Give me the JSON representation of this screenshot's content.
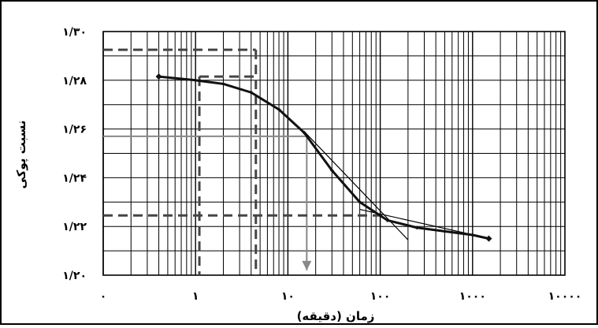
{
  "chart_data": {
    "type": "line",
    "title": "",
    "xlabel": "زمان (دقیقه)",
    "ylabel": "نسبت پوکی",
    "xscale": "log",
    "xlim": [
      0.1,
      10000
    ],
    "ylim": [
      1.2,
      1.3
    ],
    "x_tick_labels": [
      "۰",
      "۱",
      "۱۰",
      "۱۰۰",
      "۱۰۰۰",
      "۱۰۰۰۰"
    ],
    "y_tick_labels": [
      "۱/۲۰",
      "۱/۲۲",
      "۱/۲۴",
      "۱/۲۶",
      "۱/۲۸",
      "۱/۳۰"
    ],
    "grid": true,
    "colors": {
      "curve": "#111111",
      "dashed": "#444444",
      "reference": "#888888",
      "grid": "#000000"
    },
    "series": [
      {
        "x": [
          0.4,
          1.0,
          2.0,
          4.0,
          8.0,
          15.0,
          30.0,
          60.0,
          120.0,
          250.0,
          500.0,
          1000.0,
          1500.0
        ],
        "y": [
          1.2815,
          1.28,
          1.2785,
          1.275,
          1.268,
          1.2585,
          1.243,
          1.23,
          1.2225,
          1.2195,
          1.218,
          1.2165,
          1.215
        ]
      }
    ],
    "annotations": {
      "tangent_lines": [
        {
          "x": [
            15.0,
            200.0
          ],
          "y": [
            1.259,
            1.2145
          ]
        },
        {
          "x": [
            60.0,
            900.0
          ],
          "y": [
            1.227,
            1.217
          ]
        }
      ],
      "dashed_lines": [
        {
          "x": [
            0.1,
            4.5
          ],
          "y": [
            1.2925,
            1.2925
          ]
        },
        {
          "x": [
            4.5,
            4.5
          ],
          "y": [
            1.2925,
            1.2
          ]
        },
        {
          "x": [
            1.1,
            4.5
          ],
          "y": [
            1.2815,
            1.2815
          ]
        },
        {
          "x": [
            1.1,
            1.1
          ],
          "y": [
            1.2815,
            1.2
          ]
        },
        {
          "x": [
            0.1,
            120.0
          ],
          "y": [
            1.2245,
            1.2245
          ]
        }
      ],
      "reference_lines": [
        {
          "x": [
            0.1,
            16.0
          ],
          "y": [
            1.257,
            1.257
          ]
        },
        {
          "x": [
            16.0,
            16.0
          ],
          "y": [
            1.257,
            1.202
          ],
          "arrow": true
        }
      ]
    }
  }
}
